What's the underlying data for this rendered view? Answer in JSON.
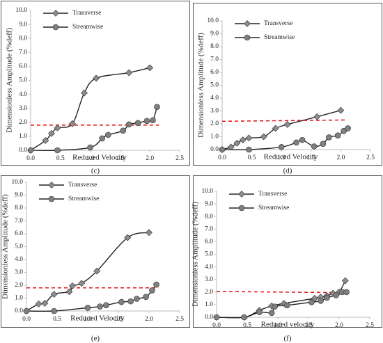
{
  "chart_data": [
    {
      "type": "line",
      "panel_label": "(c)",
      "xlabel": "Reduced Velocity",
      "ylabel": "Dimensionless Amplitude (%deff)",
      "xlim": [
        0,
        2.5
      ],
      "ylim": [
        0,
        10
      ],
      "xticks": [
        {
          "value": 0,
          "label": "0.0"
        },
        {
          "value": 0.5,
          "label": "0.5"
        },
        {
          "value": 1,
          "label": "1.0"
        },
        {
          "value": 1.5,
          "label": "1.5"
        },
        {
          "value": 2,
          "label": "2.0"
        },
        {
          "value": 2.5,
          "label": "2.5"
        }
      ],
      "yticks": [
        {
          "value": 0,
          "label": "0.0"
        },
        {
          "value": 1,
          "label": "1.0"
        },
        {
          "value": 2,
          "label": "2.0"
        },
        {
          "value": 3,
          "label": "3.0"
        },
        {
          "value": 4,
          "label": "4.0"
        },
        {
          "value": 5,
          "label": "5.0"
        },
        {
          "value": 6,
          "label": "6.0"
        },
        {
          "value": 7,
          "label": "7.0"
        },
        {
          "value": 8,
          "label": "8.0"
        },
        {
          "value": 9,
          "label": "9.0"
        },
        {
          "value": 10,
          "label": "10.0"
        }
      ],
      "series": [
        {
          "name": "Transverse",
          "marker": "diamond",
          "color": "#8c8c8c",
          "x": [
            0,
            0.25,
            0.35,
            0.45,
            0.7,
            0.9,
            1.1,
            1.65,
            2.0
          ],
          "values": [
            0,
            0.7,
            1.2,
            1.6,
            1.9,
            4.1,
            5.15,
            5.55,
            5.9
          ]
        },
        {
          "name": "Streamwise",
          "marker": "circle",
          "color": "#7f7f7f",
          "x": [
            0,
            0.45,
            1.0,
            1.2,
            1.3,
            1.55,
            1.65,
            1.8,
            1.95,
            2.05,
            2.12
          ],
          "values": [
            0,
            0,
            0.2,
            0.85,
            1.1,
            1.4,
            1.85,
            1.95,
            2.1,
            2.15,
            3.1
          ]
        }
      ],
      "reference_line": {
        "x": [
          0,
          2.15
        ],
        "y": [
          1.8,
          1.8
        ],
        "color": "#e31a1c"
      }
    },
    {
      "type": "line",
      "panel_label": "(d)",
      "xlabel": "Reduced Velocity",
      "ylabel": "Dimensionless Amplitude (%deff)",
      "xlim": [
        0,
        2.5
      ],
      "ylim": [
        0,
        10
      ],
      "xticks": [
        {
          "value": 0,
          "label": "0.0"
        },
        {
          "value": 0.5,
          "label": "0.5"
        },
        {
          "value": 1,
          "label": "1.0"
        },
        {
          "value": 1.5,
          "label": "1.5"
        },
        {
          "value": 2,
          "label": "2.0"
        },
        {
          "value": 2.5,
          "label": "2.5"
        }
      ],
      "yticks": [
        {
          "value": 0,
          "label": "0.0"
        },
        {
          "value": 1,
          "label": "1.0"
        },
        {
          "value": 2,
          "label": "2.0"
        },
        {
          "value": 3,
          "label": "3.0"
        },
        {
          "value": 4,
          "label": "4.0"
        },
        {
          "value": 5,
          "label": "5.0"
        },
        {
          "value": 6,
          "label": "6.0"
        },
        {
          "value": 7,
          "label": "7.0"
        },
        {
          "value": 8,
          "label": "8.0"
        },
        {
          "value": 9,
          "label": "9.0"
        },
        {
          "value": 10,
          "label": "10.0"
        }
      ],
      "series": [
        {
          "name": "Transverse",
          "marker": "diamond",
          "color": "#8c8c8c",
          "x": [
            0,
            0.15,
            0.25,
            0.35,
            0.45,
            0.7,
            0.9,
            1.1,
            1.6,
            2.0
          ],
          "values": [
            0,
            0.2,
            0.5,
            0.75,
            0.9,
            1.0,
            1.65,
            1.95,
            2.55,
            3.05
          ]
        },
        {
          "name": "Streamwise",
          "marker": "circle",
          "color": "#7f7f7f",
          "x": [
            0,
            0.45,
            1.0,
            1.25,
            1.35,
            1.55,
            1.7,
            1.8,
            1.95,
            2.05,
            2.12
          ],
          "values": [
            0,
            0,
            0.2,
            0.55,
            0.75,
            0.25,
            0.45,
            0.95,
            1.1,
            1.45,
            1.65
          ]
        }
      ],
      "reference_line": {
        "x": [
          0,
          2.1
        ],
        "y": [
          2.2,
          2.3
        ],
        "color": "#e31a1c"
      }
    },
    {
      "type": "line",
      "panel_label": "(e)",
      "xlabel": "Reduced Velocity",
      "ylabel": "Dimensionless Amplitude (%deff)",
      "xlim": [
        0,
        2.5
      ],
      "ylim": [
        0,
        10
      ],
      "xticks": [
        {
          "value": 0,
          "label": "0.0"
        },
        {
          "value": 0.5,
          "label": "0.5"
        },
        {
          "value": 1,
          "label": "1.0"
        },
        {
          "value": 1.5,
          "label": "1.5"
        },
        {
          "value": 2,
          "label": "2.0"
        },
        {
          "value": 2.5,
          "label": "2.5"
        }
      ],
      "yticks": [
        {
          "value": 0,
          "label": "0.0"
        },
        {
          "value": 1,
          "label": "1.0"
        },
        {
          "value": 2,
          "label": "2.0"
        },
        {
          "value": 3,
          "label": "3.0"
        },
        {
          "value": 4,
          "label": "4.0"
        },
        {
          "value": 5,
          "label": "5.0"
        },
        {
          "value": 6,
          "label": "6.0"
        },
        {
          "value": 7,
          "label": "7.0"
        },
        {
          "value": 8,
          "label": "8.0"
        },
        {
          "value": 9,
          "label": "9.0"
        },
        {
          "value": 10,
          "label": "10.0"
        }
      ],
      "series": [
        {
          "name": "Transverse",
          "marker": "diamond",
          "color": "#8c8c8c",
          "x": [
            0,
            0.2,
            0.3,
            0.45,
            0.7,
            0.75,
            0.9,
            1.15,
            1.65,
            2.0
          ],
          "values": [
            0,
            0.55,
            0.6,
            1.3,
            1.5,
            1.95,
            2.15,
            3.1,
            5.7,
            6.1
          ]
        },
        {
          "name": "Streamwise",
          "marker": "circle",
          "color": "#7f7f7f",
          "x": [
            0,
            0.45,
            1.0,
            1.2,
            1.3,
            1.55,
            1.7,
            1.8,
            1.95,
            2.05,
            2.12
          ],
          "values": [
            0,
            0,
            0.25,
            0.35,
            0.45,
            0.7,
            0.75,
            0.95,
            1.1,
            1.6,
            2.05
          ]
        }
      ],
      "reference_line": {
        "x": [
          0,
          2.15
        ],
        "y": [
          1.8,
          1.8
        ],
        "color": "#e31a1c"
      }
    },
    {
      "type": "line",
      "panel_label": "(f)",
      "xlabel": "Reduced velocity",
      "ylabel": "Dimensionless Amplitude (%deff)",
      "xlim": [
        0,
        2.5
      ],
      "ylim": [
        0,
        10
      ],
      "xticks": [
        {
          "value": 0,
          "label": "0.0"
        },
        {
          "value": 0.5,
          "label": "0.5"
        },
        {
          "value": 1,
          "label": "1.0"
        },
        {
          "value": 1.5,
          "label": "1.5"
        },
        {
          "value": 2,
          "label": "2.0"
        },
        {
          "value": 2.5,
          "label": "2.5"
        }
      ],
      "yticks": [
        {
          "value": 0,
          "label": "0.0"
        },
        {
          "value": 1,
          "label": "1.0"
        },
        {
          "value": 2,
          "label": "2.0"
        },
        {
          "value": 3,
          "label": "3.0"
        },
        {
          "value": 4,
          "label": "4.0"
        },
        {
          "value": 5,
          "label": "5.0"
        },
        {
          "value": 6,
          "label": "6.0"
        },
        {
          "value": 7,
          "label": "7.0"
        },
        {
          "value": 8,
          "label": "8.0"
        },
        {
          "value": 9,
          "label": "9.0"
        },
        {
          "value": 10,
          "label": "10.0"
        }
      ],
      "series": [
        {
          "name": "Transverse",
          "marker": "diamond",
          "color": "#8c8c8c",
          "x": [
            0,
            0.45,
            0.7,
            0.9,
            1.1,
            1.6,
            1.7,
            1.8,
            1.9,
            2.0,
            2.1
          ],
          "values": [
            0,
            0,
            0.55,
            0.9,
            1.1,
            1.5,
            1.6,
            1.7,
            1.9,
            2.0,
            2.9
          ]
        },
        {
          "name": "Streamwise",
          "marker": "circle",
          "color": "#7f7f7f",
          "x": [
            0,
            0.45,
            0.7,
            0.9,
            0.95,
            1.15,
            1.55,
            1.7,
            1.8,
            1.95,
            2.05,
            2.12
          ],
          "values": [
            0,
            0,
            0.4,
            0.35,
            0.85,
            0.95,
            1.2,
            1.3,
            1.55,
            1.75,
            2.0,
            2.0
          ]
        }
      ],
      "reference_line": {
        "x": [
          0,
          2.1
        ],
        "y": [
          2.05,
          1.95
        ],
        "color": "#e31a1c"
      }
    }
  ]
}
